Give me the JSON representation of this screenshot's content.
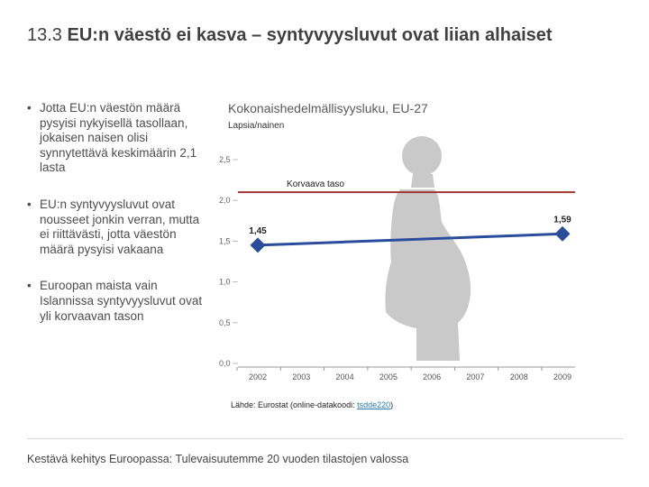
{
  "slide": {
    "number": "13.3",
    "title": "EU:n väestö ei kasva – syntyvyysluvut ovat liian alhaiset"
  },
  "bullets": [
    "Jotta EU:n väestön määrä pysyisi nykyisellä tasollaan, jokaisen naisen olisi synnytettävä keskimäärin 2,1 lasta",
    "EU:n syntyvyysluvut ovat nousseet jonkin verran, mutta ei riittävästi, jotta väestön määrä pysyisi vakaana",
    "Euroopan maista vain Islannissa syntyvyysluvut ovat yli korvaavan tason"
  ],
  "bullet_symbol": "•",
  "source": {
    "prefix": "Lähde: Eurostat (online-datakoodi: ",
    "code": "tsdde220",
    "suffix": ")"
  },
  "footer": "Kestävä kehitys Euroopassa: Tulevaisuutemme 20 vuoden tilastojen valossa",
  "colors": {
    "series": "#2a4c9c",
    "reference": "#a0352d",
    "silhouette": "#c9c9c9"
  },
  "chart_data": {
    "type": "line",
    "title": "Kokonaishedelmällisyysluku, EU-27",
    "ylabel": "Lapsia/nainen",
    "xlabel": "",
    "x": [
      "2002",
      "2003",
      "2004",
      "2005",
      "2006",
      "2007",
      "2008",
      "2009"
    ],
    "y_ticks": [
      "0,0",
      "0,5",
      "1,0",
      "1,5",
      "2,0",
      "2,5"
    ],
    "ylim": [
      0,
      2.5
    ],
    "series": [
      {
        "name": "EU-27",
        "values": [
          1.45,
          1.47,
          1.49,
          1.51,
          1.53,
          1.55,
          1.57,
          1.59
        ]
      }
    ],
    "endpoint_labels": [
      "1,45",
      "1,59"
    ],
    "reference_line": {
      "label": "Korvaava taso",
      "value": 2.1
    },
    "grid": false
  }
}
